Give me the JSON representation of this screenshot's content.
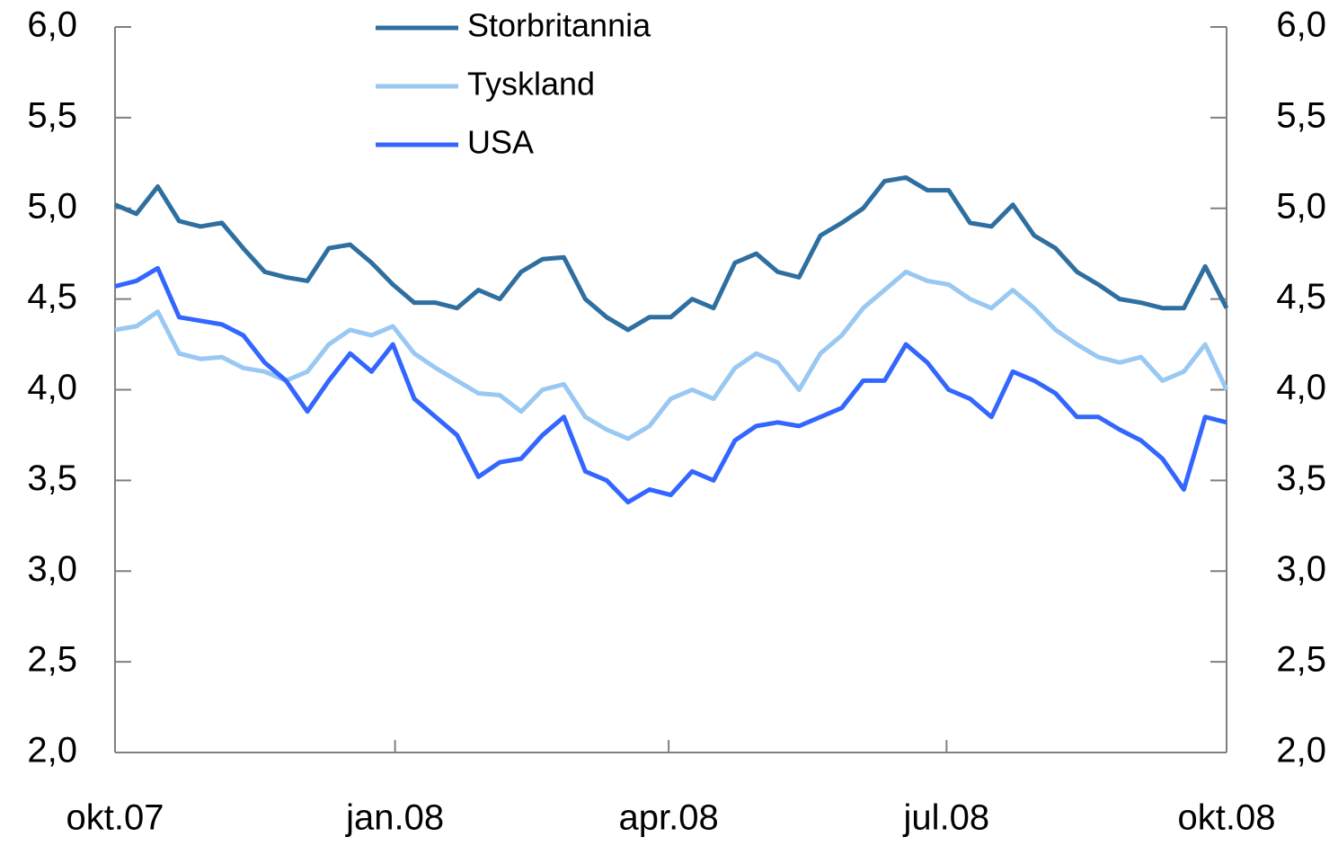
{
  "chart_data": {
    "type": "line",
    "x": [
      0,
      1,
      2,
      3,
      4,
      5,
      6,
      7,
      8,
      9,
      10,
      11,
      12,
      13,
      14,
      15,
      16,
      17,
      18,
      19,
      20,
      21,
      22,
      23,
      24,
      25,
      26,
      27,
      28,
      29,
      30,
      31,
      32,
      33,
      34,
      35,
      36,
      37,
      38,
      39,
      40,
      41,
      42,
      43,
      44,
      45,
      46,
      47,
      48,
      49,
      50,
      51,
      52
    ],
    "xlim": [
      0,
      52
    ],
    "xticks": [
      {
        "value": 0,
        "label": "okt.07"
      },
      {
        "value": 13.1,
        "label": "jan.08"
      },
      {
        "value": 25.9,
        "label": "apr.08"
      },
      {
        "value": 38.9,
        "label": "jul.08"
      },
      {
        "value": 52,
        "label": "okt.08"
      }
    ],
    "ylim": [
      2,
      6
    ],
    "yticks": [
      {
        "value": 2,
        "label": "2,0"
      },
      {
        "value": 2.5,
        "label": "2,5"
      },
      {
        "value": 3,
        "label": "3,0"
      },
      {
        "value": 3.5,
        "label": "3,5"
      },
      {
        "value": 4,
        "label": "4,0"
      },
      {
        "value": 4.5,
        "label": "4,5"
      },
      {
        "value": 5,
        "label": "5,0"
      },
      {
        "value": 5.5,
        "label": "5,5"
      },
      {
        "value": 6,
        "label": "6,0"
      }
    ],
    "y2lim": [
      2,
      6
    ],
    "y2ticks": [
      {
        "value": 2,
        "label": "2,0"
      },
      {
        "value": 2.5,
        "label": "2,5"
      },
      {
        "value": 3,
        "label": "3,0"
      },
      {
        "value": 3.5,
        "label": "3,5"
      },
      {
        "value": 4,
        "label": "4,0"
      },
      {
        "value": 4.5,
        "label": "4,5"
      },
      {
        "value": 5,
        "label": "5,0"
      },
      {
        "value": 5.5,
        "label": "5,5"
      },
      {
        "value": 6,
        "label": "6,0"
      }
    ],
    "legend": "top",
    "series": [
      {
        "name": "Storbritannia",
        "color": "#2f6fa0",
        "values": [
          5.02,
          4.97,
          5.12,
          4.93,
          4.9,
          4.92,
          4.78,
          4.65,
          4.62,
          4.6,
          4.78,
          4.8,
          4.7,
          4.58,
          4.48,
          4.48,
          4.45,
          4.55,
          4.5,
          4.65,
          4.72,
          4.73,
          4.5,
          4.4,
          4.33,
          4.4,
          4.4,
          4.5,
          4.45,
          4.7,
          4.75,
          4.65,
          4.62,
          4.85,
          4.92,
          5.0,
          5.15,
          5.17,
          5.1,
          5.1,
          4.92,
          4.9,
          5.02,
          4.85,
          4.78,
          4.65,
          4.58,
          4.5,
          4.48,
          4.45,
          4.45,
          4.68,
          4.45
        ]
      },
      {
        "name": "Tyskland",
        "color": "#99c8f2",
        "values": [
          4.33,
          4.35,
          4.43,
          4.2,
          4.17,
          4.18,
          4.12,
          4.1,
          4.05,
          4.1,
          4.25,
          4.33,
          4.3,
          4.35,
          4.2,
          4.12,
          4.05,
          3.98,
          3.97,
          3.88,
          4.0,
          4.03,
          3.85,
          3.78,
          3.73,
          3.8,
          3.95,
          4.0,
          3.95,
          4.12,
          4.2,
          4.15,
          4.0,
          4.2,
          4.3,
          4.45,
          4.55,
          4.65,
          4.6,
          4.58,
          4.5,
          4.45,
          4.55,
          4.45,
          4.33,
          4.25,
          4.18,
          4.15,
          4.18,
          4.05,
          4.1,
          4.25,
          4.0
        ]
      },
      {
        "name": "USA",
        "color": "#3366ff",
        "values": [
          4.57,
          4.6,
          4.67,
          4.4,
          4.38,
          4.36,
          4.3,
          4.15,
          4.05,
          3.88,
          4.05,
          4.2,
          4.1,
          4.25,
          3.95,
          3.85,
          3.75,
          3.52,
          3.6,
          3.62,
          3.75,
          3.85,
          3.55,
          3.5,
          3.38,
          3.45,
          3.42,
          3.55,
          3.5,
          3.72,
          3.8,
          3.82,
          3.8,
          3.85,
          3.9,
          4.05,
          4.05,
          4.25,
          4.15,
          4.0,
          3.95,
          3.85,
          4.1,
          4.05,
          3.98,
          3.85,
          3.85,
          3.78,
          3.72,
          3.62,
          3.45,
          3.85,
          3.82
        ]
      }
    ]
  }
}
